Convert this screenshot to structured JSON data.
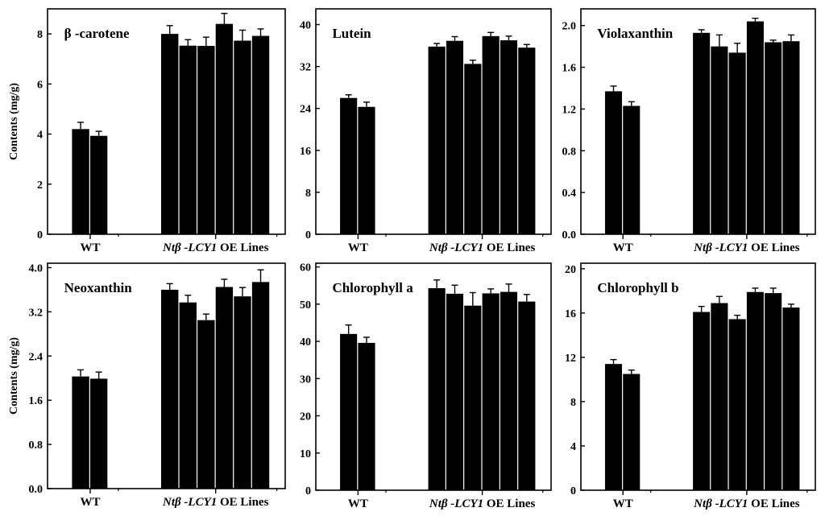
{
  "figure": {
    "background": "#ffffff",
    "bar_color": "#000000"
  },
  "chart_data": [
    {
      "type": "bar",
      "title": "β -carotene",
      "ylabel": "Contents (mg/g)",
      "ylim": [
        0,
        9
      ],
      "yticks": [
        "0",
        "2",
        "4",
        "6",
        "8"
      ],
      "ytick_values": [
        0,
        2,
        4,
        6,
        8
      ],
      "group_labels": [
        {
          "parts": [
            {
              "text": "WT",
              "italic": false
            }
          ]
        },
        {
          "parts": [
            {
              "text": "Ntβ -LCY1",
              "italic": true
            },
            {
              "text": " OE Lines",
              "italic": false
            }
          ]
        }
      ],
      "groups": [
        {
          "values": [
            4.2,
            3.93
          ],
          "errors": [
            0.27,
            0.18
          ]
        },
        {
          "values": [
            8.0,
            7.53,
            7.52,
            8.4,
            7.73,
            7.92
          ],
          "errors": [
            0.33,
            0.24,
            0.35,
            0.42,
            0.42,
            0.28
          ]
        }
      ]
    },
    {
      "type": "bar",
      "title": "Lutein",
      "ylabel": "",
      "ylim": [
        0,
        43
      ],
      "yticks": [
        "0",
        "8",
        "16",
        "24",
        "32",
        "40"
      ],
      "ytick_values": [
        0,
        8,
        16,
        24,
        32,
        40
      ],
      "group_labels": [
        {
          "parts": [
            {
              "text": "WT",
              "italic": false
            }
          ]
        },
        {
          "parts": [
            {
              "text": "Ntβ -LCY1",
              "italic": true
            },
            {
              "text": " OE Lines",
              "italic": false
            }
          ]
        }
      ],
      "groups": [
        {
          "values": [
            26.0,
            24.3
          ],
          "errors": [
            0.6,
            0.9
          ]
        },
        {
          "values": [
            35.8,
            36.9,
            32.5,
            37.8,
            37.0,
            35.6
          ],
          "errors": [
            0.6,
            0.8,
            0.7,
            0.7,
            0.8,
            0.6
          ]
        }
      ]
    },
    {
      "type": "bar",
      "title": "Violaxanthin",
      "ylabel": "",
      "ylim": [
        0,
        2.16
      ],
      "yticks": [
        "0.0",
        "0.4",
        "0.8",
        "1.2",
        "1.6",
        "2.0"
      ],
      "ytick_values": [
        0,
        0.4,
        0.8,
        1.2,
        1.6,
        2.0
      ],
      "group_labels": [
        {
          "parts": [
            {
              "text": "WT",
              "italic": false
            }
          ]
        },
        {
          "parts": [
            {
              "text": "Ntβ -LCY1",
              "italic": true
            },
            {
              "text": " OE Lines",
              "italic": false
            }
          ]
        }
      ],
      "groups": [
        {
          "values": [
            1.37,
            1.23
          ],
          "errors": [
            0.05,
            0.04
          ]
        },
        {
          "values": [
            1.93,
            1.8,
            1.74,
            2.04,
            1.84,
            1.85
          ],
          "errors": [
            0.03,
            0.11,
            0.09,
            0.03,
            0.02,
            0.06
          ]
        }
      ]
    },
    {
      "type": "bar",
      "title": "Neoxanthin",
      "ylabel": "Contents (mg/g)",
      "ylim": [
        0,
        4.08
      ],
      "yticks": [
        "0.0",
        "0.8",
        "1.6",
        "2.4",
        "3.2",
        "4.0"
      ],
      "ytick_values": [
        0,
        0.8,
        1.6,
        2.4,
        3.2,
        4.0
      ],
      "group_labels": [
        {
          "parts": [
            {
              "text": "WT",
              "italic": false
            }
          ]
        },
        {
          "parts": [
            {
              "text": "Ntβ -LCY1",
              "italic": true
            },
            {
              "text": " OE Lines",
              "italic": false
            }
          ]
        }
      ],
      "groups": [
        {
          "values": [
            2.03,
            1.99
          ],
          "errors": [
            0.12,
            0.12
          ]
        },
        {
          "values": [
            3.6,
            3.37,
            3.05,
            3.65,
            3.48,
            3.74
          ],
          "errors": [
            0.11,
            0.13,
            0.11,
            0.14,
            0.16,
            0.22
          ]
        }
      ]
    },
    {
      "type": "bar",
      "title": "Chlorophyll a",
      "ylabel": "",
      "ylim": [
        0,
        61
      ],
      "yticks": [
        "0",
        "10",
        "20",
        "30",
        "40",
        "50",
        "60"
      ],
      "ytick_values": [
        0,
        10,
        20,
        30,
        40,
        50,
        60
      ],
      "group_labels": [
        {
          "parts": [
            {
              "text": "WT",
              "italic": false
            }
          ]
        },
        {
          "parts": [
            {
              "text": "Ntβ -LCY1",
              "italic": true
            },
            {
              "text": " OE Lines",
              "italic": false
            }
          ]
        }
      ],
      "groups": [
        {
          "values": [
            42.0,
            39.6
          ],
          "errors": [
            2.4,
            1.5
          ]
        },
        {
          "values": [
            54.3,
            52.8,
            49.6,
            52.9,
            53.3,
            50.7
          ],
          "errors": [
            2.2,
            2.3,
            3.5,
            1.2,
            2.1,
            1.9
          ]
        }
      ]
    },
    {
      "type": "bar",
      "title": "Chlorophyll b",
      "ylabel": "",
      "ylim": [
        0,
        20.5
      ],
      "yticks": [
        "0",
        "4",
        "8",
        "12",
        "16",
        "20"
      ],
      "ytick_values": [
        0,
        4,
        8,
        12,
        16,
        20
      ],
      "group_labels": [
        {
          "parts": [
            {
              "text": "WT",
              "italic": false
            }
          ]
        },
        {
          "parts": [
            {
              "text": "Ntβ -LCY1",
              "italic": true
            },
            {
              "text": " OE Lines",
              "italic": false
            }
          ]
        }
      ],
      "groups": [
        {
          "values": [
            11.4,
            10.5
          ],
          "errors": [
            0.4,
            0.35
          ]
        },
        {
          "values": [
            16.1,
            16.9,
            15.45,
            17.9,
            17.8,
            16.5
          ],
          "errors": [
            0.5,
            0.6,
            0.35,
            0.35,
            0.45,
            0.3
          ]
        }
      ]
    }
  ]
}
